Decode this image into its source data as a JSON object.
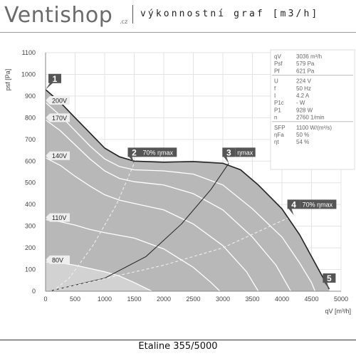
{
  "header": {
    "logo_text": "Ventishop",
    "logo_suffix": ".cz",
    "title": "výkonnostní graf [m3/h]"
  },
  "footer": {
    "caption": "Etaline 355/5000"
  },
  "colors": {
    "region_fill": "#b8b8b8",
    "low_region_fill": "#d2d2d2",
    "plot_background": "#ffffff",
    "curve": "#222222",
    "marker_fill": "#555555",
    "label_fill": "#eeeeee"
  },
  "chart_data": {
    "type": "line",
    "title": "",
    "xlabel": "qV [m³/h]",
    "ylabel": "psf [Pa]",
    "xlim": [
      0,
      5000
    ],
    "ylim": [
      0,
      1100
    ],
    "x_ticks": [
      0,
      500,
      1000,
      1500,
      2000,
      2500,
      3000,
      3500,
      4000,
      4500,
      5000
    ],
    "y_ticks": [
      0,
      100,
      200,
      300,
      400,
      500,
      600,
      700,
      800,
      900,
      1000,
      1100
    ],
    "grid": true,
    "max_curve": [
      [
        0,
        930
      ],
      [
        250,
        870
      ],
      [
        500,
        800
      ],
      [
        750,
        730
      ],
      [
        1000,
        660
      ],
      [
        1250,
        620
      ],
      [
        1500,
        600
      ],
      [
        2000,
        595
      ],
      [
        2500,
        598
      ],
      [
        3000,
        590
      ],
      [
        3300,
        560
      ],
      [
        3600,
        490
      ],
      [
        4000,
        380
      ],
      [
        4300,
        260
      ],
      [
        4500,
        160
      ],
      [
        4700,
        60
      ],
      [
        4800,
        10
      ]
    ],
    "speed_curves": [
      {
        "name": "200V",
        "points": [
          [
            0,
            870
          ],
          [
            250,
            810
          ],
          [
            500,
            740
          ],
          [
            750,
            670
          ],
          [
            1000,
            610
          ],
          [
            1250,
            575
          ],
          [
            1500,
            560
          ],
          [
            2000,
            555
          ],
          [
            2500,
            540
          ],
          [
            3000,
            490
          ],
          [
            3500,
            380
          ],
          [
            4000,
            250
          ],
          [
            4300,
            130
          ],
          [
            4500,
            40
          ],
          [
            4560,
            0
          ]
        ]
      },
      {
        "name": "170V",
        "points": [
          [
            0,
            790
          ],
          [
            250,
            740
          ],
          [
            500,
            675
          ],
          [
            750,
            610
          ],
          [
            1000,
            555
          ],
          [
            1250,
            520
          ],
          [
            1500,
            505
          ],
          [
            2000,
            490
          ],
          [
            2500,
            450
          ],
          [
            3000,
            375
          ],
          [
            3500,
            250
          ],
          [
            3900,
            120
          ],
          [
            4150,
            0
          ]
        ]
      },
      {
        "name": "140V",
        "points": [
          [
            0,
            615
          ],
          [
            250,
            580
          ],
          [
            500,
            530
          ],
          [
            750,
            485
          ],
          [
            1000,
            445
          ],
          [
            1250,
            420
          ],
          [
            1500,
            405
          ],
          [
            2000,
            375
          ],
          [
            2500,
            310
          ],
          [
            3000,
            210
          ],
          [
            3400,
            90
          ],
          [
            3600,
            0
          ]
        ]
      },
      {
        "name": "110V",
        "points": [
          [
            0,
            330
          ],
          [
            250,
            320
          ],
          [
            500,
            305
          ],
          [
            750,
            285
          ],
          [
            1000,
            270
          ],
          [
            1500,
            245
          ],
          [
            2000,
            195
          ],
          [
            2500,
            110
          ],
          [
            2800,
            40
          ],
          [
            2950,
            0
          ]
        ]
      },
      {
        "name": "80V",
        "points": [
          [
            0,
            135
          ],
          [
            250,
            130
          ],
          [
            500,
            120
          ],
          [
            750,
            105
          ],
          [
            1000,
            90
          ],
          [
            1250,
            70
          ],
          [
            1500,
            40
          ],
          [
            1800,
            0
          ]
        ]
      }
    ],
    "system_curves": [
      {
        "name": "70% ηmax",
        "style": "dashed",
        "points": [
          [
            120,
            0
          ],
          [
            400,
            60
          ],
          [
            800,
            210
          ],
          [
            1200,
            400
          ],
          [
            1500,
            590
          ]
        ]
      },
      {
        "name": "ηmax",
        "style": "solid",
        "points": [
          [
            60,
            0
          ],
          [
            1000,
            60
          ],
          [
            1700,
            160
          ],
          [
            2300,
            310
          ],
          [
            2800,
            470
          ],
          [
            3100,
            590
          ]
        ]
      },
      {
        "name": "70% ηmax",
        "style": "dashed",
        "points": [
          [
            60,
            0
          ],
          [
            2000,
            120
          ],
          [
            3000,
            200
          ],
          [
            4200,
            350
          ]
        ]
      }
    ],
    "points": [
      {
        "label": "1",
        "x": 0,
        "y": 930
      },
      {
        "label": "2",
        "x": 1500,
        "y": 590,
        "note": "70% ηmax"
      },
      {
        "label": "3",
        "x": 3100,
        "y": 590,
        "note": "ηmax"
      },
      {
        "label": "4",
        "x": 4200,
        "y": 350,
        "note": "70% ηmax"
      },
      {
        "label": "5",
        "x": 4800,
        "y": 10
      }
    ],
    "info_panel": [
      {
        "symbol": "qV",
        "value": "3036 m³/h"
      },
      {
        "symbol": "Psf",
        "value": "579 Pa"
      },
      {
        "symbol": "Pf",
        "value": "621 Pa"
      },
      {
        "symbol": "U",
        "value": "224 V"
      },
      {
        "symbol": "f",
        "value": "50 Hz"
      },
      {
        "symbol": "I",
        "value": "4.2 A"
      },
      {
        "symbol": "P1c",
        "value": "- W"
      },
      {
        "symbol": "P1",
        "value": "928 W"
      },
      {
        "symbol": "n",
        "value": "2760 1/min"
      },
      {
        "symbol": "SFP",
        "value": "1100 W/(m³/s)"
      },
      {
        "symbol": "ηFa",
        "value": "50 %"
      },
      {
        "symbol": "ηt",
        "value": "54 %"
      }
    ]
  }
}
